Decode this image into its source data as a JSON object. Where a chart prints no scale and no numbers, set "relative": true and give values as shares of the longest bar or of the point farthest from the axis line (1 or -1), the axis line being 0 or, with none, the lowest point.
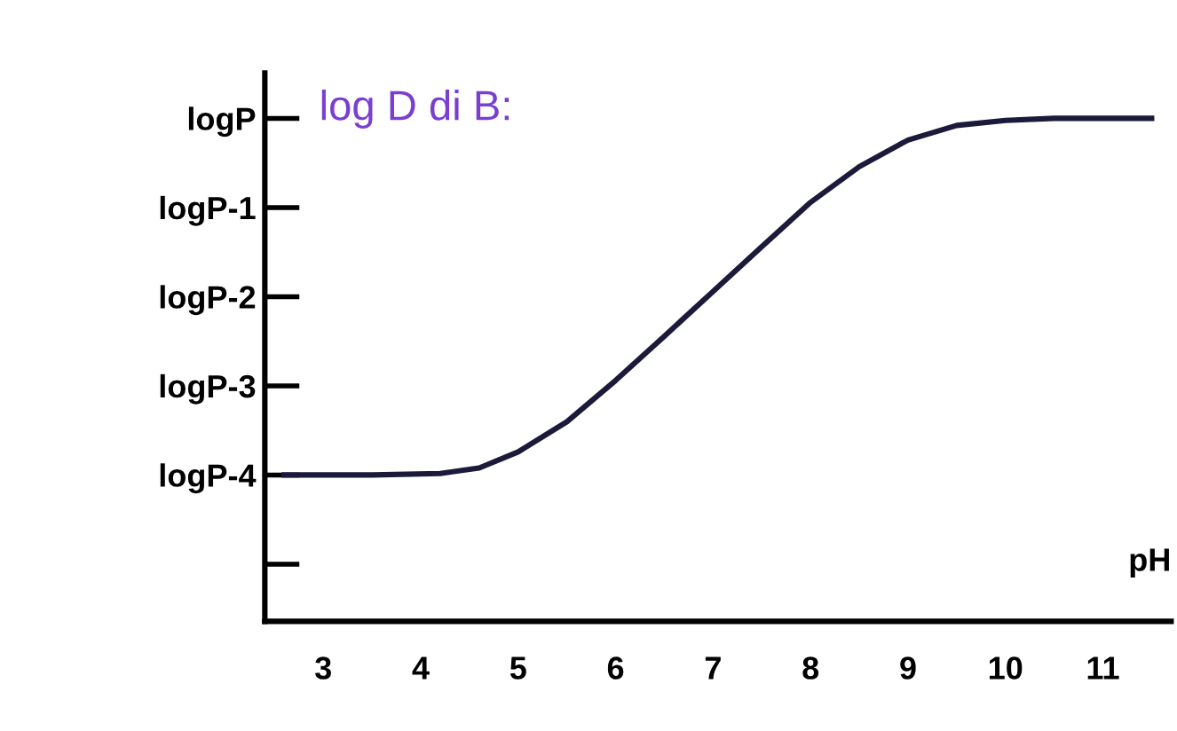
{
  "chart_data": {
    "type": "line",
    "xlabel": "pH",
    "relative": true,
    "annotations": [
      "log D di B:",
      "logP",
      "logP-1",
      "logP-2",
      "logP-3",
      "logP-4"
    ],
    "x": [
      2.6,
      3.5,
      4.2,
      4.6,
      5,
      5.5,
      6,
      6.5,
      7,
      7.5,
      8,
      8.5,
      9,
      9.5,
      10,
      10.5,
      11.5
    ],
    "series": [
      {
        "color": "#1c1a3a",
        "values": [
          0.291,
          0.291,
          0.294,
          0.305,
          0.337,
          0.397,
          0.479,
          0.567,
          0.656,
          0.745,
          0.833,
          0.904,
          0.957,
          0.986,
          0.996,
          1.0,
          1.0
        ]
      }
    ],
    "xlim": [
      2.4,
      11.7
    ],
    "xticks": [
      3,
      4,
      5,
      6,
      7,
      8,
      9,
      10,
      11
    ],
    "grid": false,
    "legend": false,
    "marker": "none",
    "line_style": "solid"
  }
}
